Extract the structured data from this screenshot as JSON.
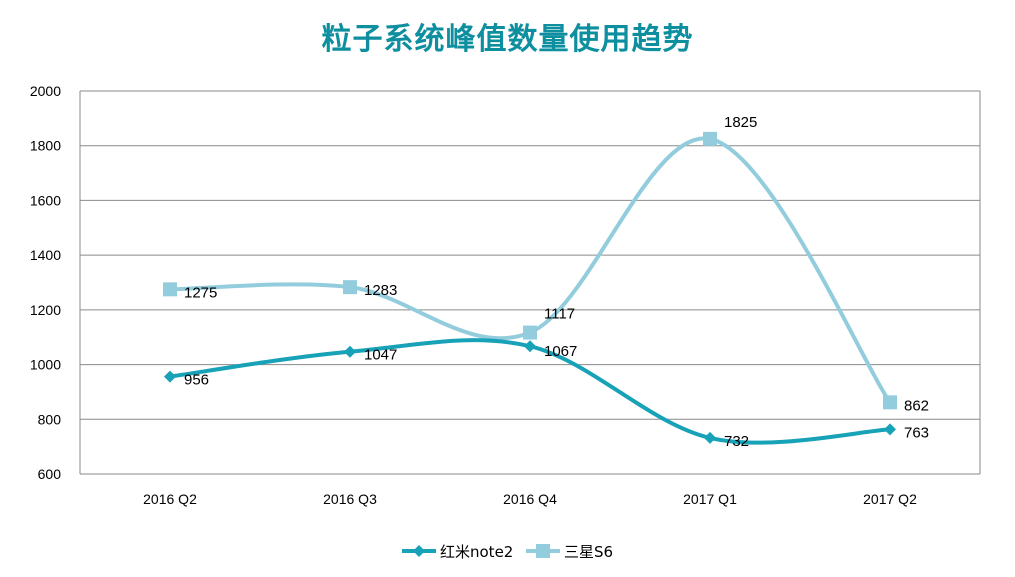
{
  "chart_data": {
    "type": "line",
    "title": "粒子系统峰值数量使用趋势",
    "categories": [
      "2016 Q2",
      "2016 Q3",
      "2016 Q4",
      "2017 Q1",
      "2017 Q2"
    ],
    "series": [
      {
        "name": "红米note2",
        "values": [
          956,
          1047,
          1067,
          732,
          763
        ],
        "color": "#17a2b8",
        "marker": "diamond"
      },
      {
        "name": "三星S6",
        "values": [
          1275,
          1283,
          1117,
          1825,
          862
        ],
        "color": "#93cddd",
        "marker": "square"
      }
    ],
    "ylim": [
      600,
      2000
    ],
    "yticks": [
      600,
      800,
      1000,
      1200,
      1400,
      1600,
      1800,
      2000
    ],
    "grid": true,
    "smooth": true,
    "data_labels": true,
    "legend": "bottom"
  }
}
